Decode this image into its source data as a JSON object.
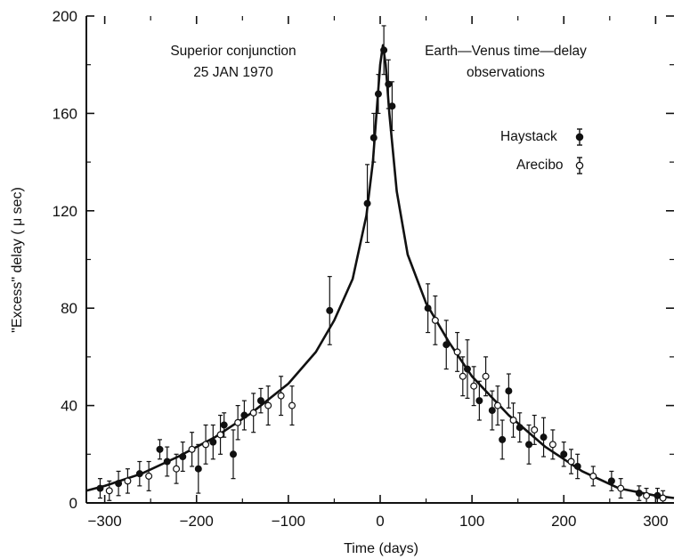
{
  "chart_data": {
    "type": "scatter",
    "title": "",
    "xlabel": "Time (days)",
    "ylabel": "\"Excess\" delay ( μ sec)",
    "xlim": [
      -320,
      320
    ],
    "ylim": [
      0,
      200
    ],
    "x_ticks": [
      -300,
      -200,
      -100,
      0,
      100,
      200,
      300
    ],
    "x_tick_labels": [
      "−300",
      "−200",
      "−100",
      "0",
      "100",
      "200",
      "300"
    ],
    "y_ticks": [
      0,
      40,
      80,
      120,
      160,
      200
    ],
    "y_tick_labels": [
      "0",
      "40",
      "80",
      "120",
      "160",
      "200"
    ],
    "grid": false,
    "legend_position": "upper-right",
    "annotations": [
      {
        "lines": [
          "Superior conjunction",
          "25 JAN 1970"
        ]
      },
      {
        "lines": [
          "Earth—Venus time—delay",
          "observations"
        ]
      }
    ],
    "series": [
      {
        "name": "Haystack",
        "marker": "filled-circle",
        "color": "#111111",
        "points": [
          {
            "x": -305,
            "y": 6,
            "err": 4
          },
          {
            "x": -285,
            "y": 8,
            "err": 5
          },
          {
            "x": -262,
            "y": 12,
            "err": 5
          },
          {
            "x": -240,
            "y": 22,
            "err": 4
          },
          {
            "x": -232,
            "y": 17,
            "err": 6
          },
          {
            "x": -215,
            "y": 19,
            "err": 6
          },
          {
            "x": -198,
            "y": 14,
            "err": 10
          },
          {
            "x": -182,
            "y": 25,
            "err": 7
          },
          {
            "x": -170,
            "y": 32,
            "err": 5
          },
          {
            "x": -160,
            "y": 20,
            "err": 10
          },
          {
            "x": -148,
            "y": 36,
            "err": 6
          },
          {
            "x": -130,
            "y": 42,
            "err": 5
          },
          {
            "x": -55,
            "y": 79,
            "err": 14
          },
          {
            "x": -14,
            "y": 123,
            "err": 16
          },
          {
            "x": -7,
            "y": 150,
            "err": 10
          },
          {
            "x": -2,
            "y": 168,
            "err": 8
          },
          {
            "x": 4,
            "y": 186,
            "err": 10
          },
          {
            "x": 9,
            "y": 172,
            "err": 10
          },
          {
            "x": 13,
            "y": 163,
            "err": 10
          },
          {
            "x": 52,
            "y": 80,
            "err": 10
          },
          {
            "x": 72,
            "y": 65,
            "err": 10
          },
          {
            "x": 95,
            "y": 55,
            "err": 12
          },
          {
            "x": 108,
            "y": 42,
            "err": 8
          },
          {
            "x": 122,
            "y": 38,
            "err": 8
          },
          {
            "x": 133,
            "y": 26,
            "err": 8
          },
          {
            "x": 140,
            "y": 46,
            "err": 7
          },
          {
            "x": 152,
            "y": 31,
            "err": 6
          },
          {
            "x": 162,
            "y": 24,
            "err": 8
          },
          {
            "x": 178,
            "y": 27,
            "err": 8
          },
          {
            "x": 200,
            "y": 20,
            "err": 5
          },
          {
            "x": 215,
            "y": 15,
            "err": 5
          },
          {
            "x": 252,
            "y": 9,
            "err": 4
          },
          {
            "x": 282,
            "y": 4,
            "err": 3
          },
          {
            "x": 302,
            "y": 3,
            "err": 3
          }
        ]
      },
      {
        "name": "Arecibo",
        "marker": "open-circle",
        "color": "#111111",
        "points": [
          {
            "x": -295,
            "y": 5,
            "err": 4
          },
          {
            "x": -275,
            "y": 9,
            "err": 5
          },
          {
            "x": -252,
            "y": 11,
            "err": 6
          },
          {
            "x": -222,
            "y": 14,
            "err": 6
          },
          {
            "x": -205,
            "y": 22,
            "err": 7
          },
          {
            "x": -190,
            "y": 24,
            "err": 8
          },
          {
            "x": -174,
            "y": 28,
            "err": 8
          },
          {
            "x": -155,
            "y": 33,
            "err": 7
          },
          {
            "x": -138,
            "y": 37,
            "err": 8
          },
          {
            "x": -122,
            "y": 40,
            "err": 8
          },
          {
            "x": -108,
            "y": 44,
            "err": 8
          },
          {
            "x": -96,
            "y": 40,
            "err": 8
          },
          {
            "x": 60,
            "y": 75,
            "err": 10
          },
          {
            "x": 84,
            "y": 62,
            "err": 8
          },
          {
            "x": 90,
            "y": 52,
            "err": 8
          },
          {
            "x": 102,
            "y": 48,
            "err": 8
          },
          {
            "x": 115,
            "y": 52,
            "err": 8
          },
          {
            "x": 128,
            "y": 40,
            "err": 8
          },
          {
            "x": 145,
            "y": 34,
            "err": 7
          },
          {
            "x": 168,
            "y": 30,
            "err": 6
          },
          {
            "x": 188,
            "y": 24,
            "err": 6
          },
          {
            "x": 208,
            "y": 17,
            "err": 5
          },
          {
            "x": 232,
            "y": 11,
            "err": 4
          },
          {
            "x": 262,
            "y": 6,
            "err": 4
          },
          {
            "x": 290,
            "y": 3,
            "err": 3
          },
          {
            "x": 308,
            "y": 2,
            "err": 3
          }
        ]
      },
      {
        "name": "",
        "type": "line",
        "color": "#111111",
        "points": [
          {
            "x": -320,
            "y": 5
          },
          {
            "x": -300,
            "y": 7
          },
          {
            "x": -260,
            "y": 12
          },
          {
            "x": -220,
            "y": 19
          },
          {
            "x": -180,
            "y": 27
          },
          {
            "x": -140,
            "y": 37
          },
          {
            "x": -100,
            "y": 49
          },
          {
            "x": -70,
            "y": 62
          },
          {
            "x": -50,
            "y": 75
          },
          {
            "x": -30,
            "y": 92
          },
          {
            "x": -15,
            "y": 118
          },
          {
            "x": -8,
            "y": 140
          },
          {
            "x": -3,
            "y": 165
          },
          {
            "x": 0,
            "y": 180
          },
          {
            "x": 3,
            "y": 188
          },
          {
            "x": 6,
            "y": 180
          },
          {
            "x": 10,
            "y": 160
          },
          {
            "x": 18,
            "y": 128
          },
          {
            "x": 30,
            "y": 102
          },
          {
            "x": 50,
            "y": 82
          },
          {
            "x": 75,
            "y": 66
          },
          {
            "x": 100,
            "y": 52
          },
          {
            "x": 140,
            "y": 36
          },
          {
            "x": 180,
            "y": 23
          },
          {
            "x": 220,
            "y": 13
          },
          {
            "x": 260,
            "y": 6
          },
          {
            "x": 300,
            "y": 3
          },
          {
            "x": 320,
            "y": 2
          }
        ]
      }
    ]
  }
}
